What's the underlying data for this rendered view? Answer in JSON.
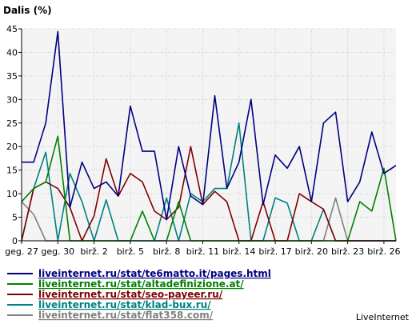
{
  "chart_data": {
    "type": "line",
    "title": "Dalis (%)",
    "ylim": [
      0,
      45
    ],
    "yticks": [
      "0",
      "5",
      "10",
      "15",
      "20",
      "25",
      "30",
      "35",
      "40",
      "45"
    ],
    "x_tick_labels": [
      "geg. 27",
      "geg. 30",
      "birž. 2",
      "birž. 5",
      "birž. 8",
      "birž. 11",
      "birž. 14",
      "birž. 17",
      "birž. 20",
      "birž. 23",
      "birž. 26"
    ],
    "grid": true,
    "legend_position": "bottom",
    "credit": "LiveInternet",
    "series": [
      {
        "name": "liveinternet.ru/stat/te6matto.it/pages.html",
        "color": "#000080",
        "values": [
          16.7,
          16.7,
          25,
          44.4,
          7.1,
          16.7,
          11.1,
          12.5,
          9.5,
          28.6,
          19,
          19,
          4.5,
          20,
          9.5,
          7.7,
          30.8,
          11.1,
          16.7,
          30,
          7.7,
          18.2,
          15.4,
          20,
          8.3,
          25,
          27.3,
          8.3,
          12.5,
          23.1,
          14.3,
          16
        ]
      },
      {
        "name": "liveinternet.ru/stat/altadefinizione.at/",
        "color": "#008000",
        "values": [
          8.3,
          11.1,
          12.5,
          22.2,
          0,
          0,
          0,
          0,
          0,
          0,
          6.3,
          0,
          0,
          8.3,
          0,
          0,
          0,
          0,
          0,
          0,
          0,
          0,
          0,
          0,
          0,
          0,
          0,
          0,
          8.3,
          6.3,
          15.4,
          0
        ]
      },
      {
        "name": "liveinternet.ru/stat/seo-payeer.ru/",
        "color": "#800000",
        "values": [
          0,
          11.1,
          12.5,
          11.1,
          7.1,
          0,
          5.3,
          17.4,
          9.5,
          14.3,
          12.5,
          6.3,
          4.5,
          7.1,
          20,
          7.7,
          10.5,
          8.3,
          0,
          0,
          8.3,
          0,
          0,
          10,
          8.3,
          6.7,
          0,
          0,
          0,
          0,
          0,
          0
        ]
      },
      {
        "name": "liveinternet.ru/stat/klad-bux.ru/",
        "color": "#008080",
        "values": [
          0,
          11.1,
          18.8,
          0,
          14.3,
          8.3,
          0,
          8.7,
          0,
          0,
          0,
          0,
          9.1,
          0,
          10,
          8.3,
          11.1,
          11.1,
          25,
          0,
          0,
          9.1,
          8,
          0,
          0,
          6.7,
          0,
          0,
          0,
          0,
          0,
          0
        ]
      },
      {
        "name": "liveinternet.ru/stat/flat358.com/",
        "color": "#808080",
        "values": [
          8.3,
          5.6,
          0,
          0,
          0,
          0,
          0,
          0,
          0,
          0,
          0,
          0,
          0,
          0,
          0,
          0,
          0,
          0,
          0,
          0,
          0,
          0,
          0,
          0,
          0,
          0,
          9.1,
          0,
          0,
          0,
          0,
          0
        ]
      }
    ]
  }
}
